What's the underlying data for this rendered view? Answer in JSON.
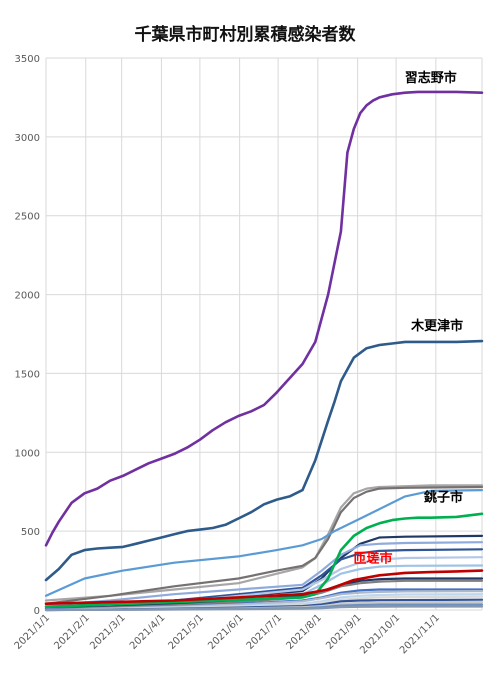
{
  "chart_data": {
    "type": "line",
    "title": "千葉県市町村別累積感染者数",
    "xlabel": "",
    "ylabel": "",
    "ylim": [
      0,
      3500
    ],
    "yticks": [
      0,
      500,
      1000,
      1500,
      2000,
      2500,
      3000,
      3500
    ],
    "xticks": [
      "2021/1/1",
      "2021/2/1",
      "2021/3/1",
      "2021/4/1",
      "2021/5/1",
      "2021/6/1",
      "2021/7/1",
      "2021/8/1",
      "2021/9/1",
      "2021/10/1",
      "2021/11/1"
    ],
    "x_range_days": [
      0,
      340
    ],
    "grid": "vertical-and-horizontal",
    "legend": "none",
    "series": [
      {
        "name": "習志野市",
        "color": "#7030a0",
        "x": [
          0,
          5,
          10,
          20,
          30,
          40,
          50,
          60,
          70,
          80,
          90,
          100,
          110,
          120,
          130,
          140,
          150,
          160,
          170,
          180,
          190,
          200,
          210,
          220,
          230,
          235,
          240,
          245,
          250,
          255,
          260,
          270,
          280,
          290,
          300,
          320,
          340
        ],
        "values": [
          410,
          490,
          560,
          680,
          740,
          770,
          820,
          850,
          890,
          930,
          960,
          990,
          1030,
          1080,
          1140,
          1190,
          1230,
          1260,
          1300,
          1380,
          1470,
          1560,
          1700,
          2000,
          2400,
          2900,
          3050,
          3150,
          3200,
          3230,
          3250,
          3270,
          3280,
          3285,
          3285,
          3285,
          3280
        ]
      },
      {
        "name": "木更津市",
        "color": "#2e5b8a",
        "x": [
          0,
          10,
          20,
          30,
          40,
          50,
          60,
          70,
          80,
          90,
          100,
          110,
          120,
          130,
          140,
          150,
          160,
          170,
          180,
          190,
          200,
          210,
          220,
          225,
          230,
          240,
          250,
          260,
          270,
          280,
          290,
          300,
          320,
          340
        ],
        "values": [
          190,
          260,
          350,
          380,
          390,
          395,
          400,
          420,
          440,
          460,
          480,
          500,
          510,
          520,
          540,
          580,
          620,
          670,
          700,
          720,
          760,
          950,
          1200,
          1320,
          1450,
          1600,
          1660,
          1680,
          1690,
          1700,
          1700,
          1700,
          1700,
          1705
        ]
      },
      {
        "name": "銚子市",
        "color": "#00b050",
        "x": [
          0,
          100,
          200,
          210,
          220,
          230,
          240,
          250,
          260,
          270,
          280,
          290,
          300,
          320,
          340
        ],
        "values": [
          20,
          50,
          80,
          100,
          200,
          380,
          470,
          520,
          550,
          570,
          580,
          585,
          585,
          590,
          610
        ]
      },
      {
        "name": "匝瑳市",
        "color": "#c00000",
        "x": [
          0,
          50,
          100,
          150,
          200,
          220,
          240,
          260,
          280,
          300,
          320,
          340
        ],
        "values": [
          40,
          50,
          60,
          80,
          100,
          130,
          190,
          220,
          235,
          240,
          245,
          250
        ]
      },
      {
        "name": "",
        "color": "#a6a6a6",
        "x": [
          0,
          50,
          100,
          150,
          180,
          200,
          210,
          220,
          230,
          240,
          250,
          260,
          280,
          300,
          340
        ],
        "values": [
          60,
          90,
          130,
          170,
          230,
          270,
          330,
          480,
          650,
          740,
          770,
          780,
          785,
          790,
          790
        ]
      },
      {
        "name": "",
        "color": "#767171",
        "x": [
          0,
          50,
          100,
          150,
          180,
          200,
          210,
          220,
          230,
          240,
          250,
          260,
          280,
          340
        ],
        "values": [
          40,
          90,
          150,
          200,
          250,
          280,
          330,
          450,
          620,
          710,
          750,
          770,
          775,
          780
        ]
      },
      {
        "name": "",
        "color": "#5b9bd5",
        "x": [
          0,
          30,
          60,
          100,
          150,
          180,
          200,
          215,
          225,
          240,
          260,
          280,
          300,
          340
        ],
        "values": [
          90,
          200,
          250,
          300,
          340,
          380,
          410,
          450,
          500,
          560,
          640,
          720,
          755,
          760
        ]
      },
      {
        "name": "",
        "color": "#1f3864",
        "x": [
          0,
          50,
          100,
          150,
          200,
          215,
          230,
          245,
          260,
          280,
          340
        ],
        "values": [
          20,
          40,
          60,
          90,
          120,
          200,
          330,
          420,
          460,
          465,
          470
        ]
      },
      {
        "name": "",
        "color": "#8faadc",
        "x": [
          0,
          50,
          100,
          150,
          200,
          215,
          230,
          245,
          260,
          280,
          340
        ],
        "values": [
          30,
          60,
          100,
          130,
          160,
          250,
          350,
          410,
          420,
          425,
          430
        ]
      },
      {
        "name": "",
        "color": "#2f5597",
        "x": [
          0,
          50,
          100,
          150,
          200,
          215,
          230,
          245,
          260,
          280,
          340
        ],
        "values": [
          10,
          30,
          60,
          100,
          140,
          220,
          320,
          360,
          375,
          380,
          385
        ]
      },
      {
        "name": "",
        "color": "#b4c7e7",
        "x": [
          0,
          50,
          100,
          150,
          200,
          215,
          230,
          245,
          260,
          280,
          340
        ],
        "values": [
          10,
          25,
          50,
          90,
          130,
          190,
          260,
          300,
          320,
          330,
          335
        ]
      },
      {
        "name": "",
        "color": "#9dc3e6",
        "x": [
          0,
          50,
          100,
          150,
          200,
          215,
          230,
          245,
          260,
          280,
          340
        ],
        "values": [
          5,
          20,
          40,
          70,
          100,
          160,
          230,
          260,
          275,
          280,
          282
        ]
      },
      {
        "name": "",
        "color": "#203864",
        "x": [
          0,
          50,
          100,
          150,
          200,
          215,
          230,
          245,
          260,
          280,
          340
        ],
        "values": [
          10,
          20,
          40,
          60,
          90,
          120,
          160,
          185,
          195,
          200,
          200
        ]
      },
      {
        "name": "",
        "color": "#7f7f7f",
        "x": [
          0,
          50,
          100,
          150,
          200,
          215,
          230,
          245,
          260,
          280,
          340
        ],
        "values": [
          5,
          15,
          30,
          50,
          80,
          110,
          150,
          170,
          180,
          185,
          185
        ]
      },
      {
        "name": "",
        "color": "#4472c4",
        "x": [
          0,
          50,
          100,
          150,
          200,
          215,
          230,
          245,
          260,
          280,
          340
        ],
        "values": [
          5,
          10,
          20,
          40,
          60,
          80,
          110,
          125,
          130,
          130,
          130
        ]
      },
      {
        "name": "",
        "color": "#adb9ca",
        "x": [
          0,
          50,
          100,
          150,
          200,
          215,
          230,
          245,
          260,
          280,
          340
        ],
        "values": [
          0,
          10,
          20,
          35,
          55,
          75,
          100,
          110,
          115,
          118,
          120
        ]
      },
      {
        "name": "",
        "color": "#bdd7ee",
        "x": [
          0,
          50,
          100,
          150,
          200,
          215,
          230,
          245,
          260,
          280,
          340
        ],
        "values": [
          0,
          5,
          15,
          25,
          40,
          55,
          80,
          90,
          95,
          98,
          100
        ]
      },
      {
        "name": "",
        "color": "#d9d9d9",
        "x": [
          0,
          50,
          100,
          150,
          200,
          215,
          230,
          245,
          260,
          280,
          340
        ],
        "values": [
          0,
          5,
          10,
          20,
          30,
          45,
          65,
          75,
          80,
          82,
          85
        ]
      },
      {
        "name": "",
        "color": "#305496",
        "x": [
          0,
          50,
          100,
          150,
          200,
          215,
          230,
          245,
          260,
          280,
          340
        ],
        "values": [
          0,
          3,
          8,
          15,
          25,
          35,
          55,
          60,
          62,
          63,
          65
        ]
      },
      {
        "name": "",
        "color": "#c9c9c9",
        "x": [
          0,
          50,
          100,
          150,
          200,
          215,
          230,
          245,
          260,
          280,
          340
        ],
        "values": [
          0,
          2,
          5,
          10,
          18,
          25,
          40,
          45,
          48,
          50,
          50
        ]
      },
      {
        "name": "",
        "color": "#6f8fbf",
        "x": [
          0,
          50,
          100,
          150,
          200,
          215,
          230,
          245,
          260,
          280,
          340
        ],
        "values": [
          0,
          2,
          4,
          8,
          12,
          18,
          28,
          32,
          34,
          35,
          35
        ]
      },
      {
        "name": "",
        "color": "#8497b0",
        "x": [
          0,
          50,
          100,
          150,
          200,
          215,
          230,
          245,
          260,
          280,
          340
        ],
        "values": [
          0,
          1,
          3,
          5,
          8,
          12,
          18,
          20,
          21,
          22,
          22
        ]
      }
    ],
    "annotations": [
      {
        "text": "習志野市",
        "series": "習志野市",
        "color": "#000000"
      },
      {
        "text": "木更津市",
        "series": "木更津市",
        "color": "#000000"
      },
      {
        "text": "銚子市",
        "series": "銚子市",
        "color": "#000000"
      },
      {
        "text": "匝瑳市",
        "series": "匝瑳市",
        "color": "#ff0000"
      }
    ]
  }
}
